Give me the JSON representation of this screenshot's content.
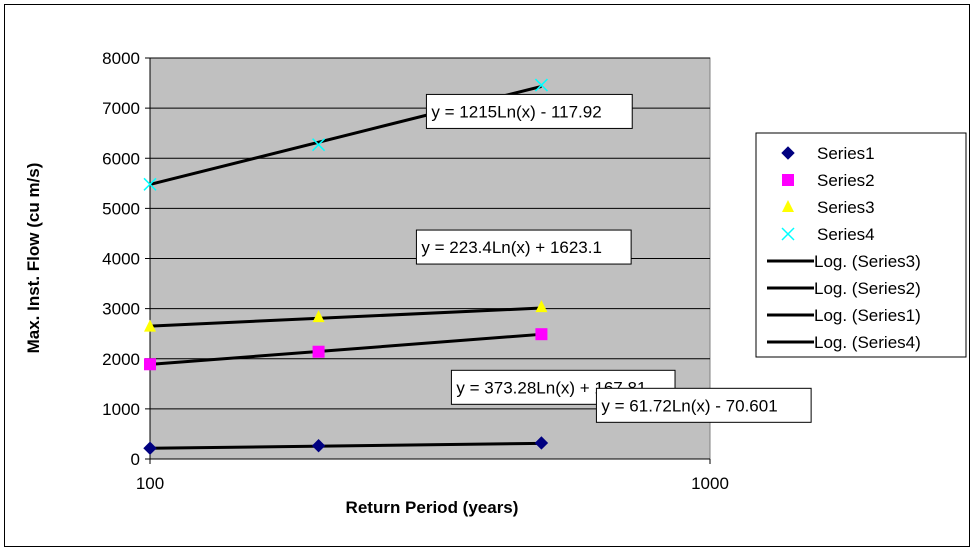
{
  "chart_data": {
    "type": "scatter",
    "title": "",
    "xlabel": "Return Period (years)",
    "ylabel": "Max. Inst. Flow (cu m/s)",
    "x_scale": "log",
    "xlim": [
      100,
      1000
    ],
    "ylim": [
      0,
      8000
    ],
    "x_ticks": [
      "100",
      "1000"
    ],
    "y_ticks": [
      "0",
      "1000",
      "2000",
      "3000",
      "4000",
      "5000",
      "6000",
      "7000",
      "8000"
    ],
    "grid": "horizontal",
    "legend_position": "right",
    "plot_background": "#c0c0c0",
    "series": [
      {
        "name": "Series1",
        "marker": "diamond",
        "color": "#000080",
        "x": [
          100,
          200,
          500
        ],
        "y": [
          215,
          265,
          320
        ]
      },
      {
        "name": "Series2",
        "marker": "square",
        "color": "#ff00ff",
        "x": [
          100,
          200,
          500
        ],
        "y": [
          1890,
          2140,
          2490
        ]
      },
      {
        "name": "Series3",
        "marker": "triangle",
        "color": "#ffff00",
        "x": [
          100,
          200,
          500
        ],
        "y": [
          2640,
          2830,
          3030
        ]
      },
      {
        "name": "Series4",
        "marker": "x",
        "color": "#00ffff",
        "x": [
          100,
          200,
          500
        ],
        "y": [
          5480,
          6270,
          7460
        ]
      }
    ],
    "trendlines": [
      {
        "name": "Log. (Series3)",
        "series": "Series3",
        "a": 223.4,
        "b": 1623.1,
        "equation": "y = 223.4Ln(x) + 1623.1"
      },
      {
        "name": "Log. (Series2)",
        "series": "Series2",
        "a": 373.28,
        "b": 167.81,
        "equation": "y = 373.28Ln(x) + 167.81"
      },
      {
        "name": "Log. (Series1)",
        "series": "Series1",
        "a": 61.72,
        "b": -70.601,
        "equation": "y = 61.72Ln(x) - 70.601"
      },
      {
        "name": "Log. (Series4)",
        "series": "Series4",
        "a": 1215,
        "b": -117.92,
        "equation": "y = 1215Ln(x) - 117.92"
      }
    ],
    "legend": [
      "Series1",
      "Series2",
      "Series3",
      "Series4",
      "Log. (Series3)",
      "Log. (Series2)",
      "Log. (Series1)",
      "Log. (Series4)"
    ]
  }
}
